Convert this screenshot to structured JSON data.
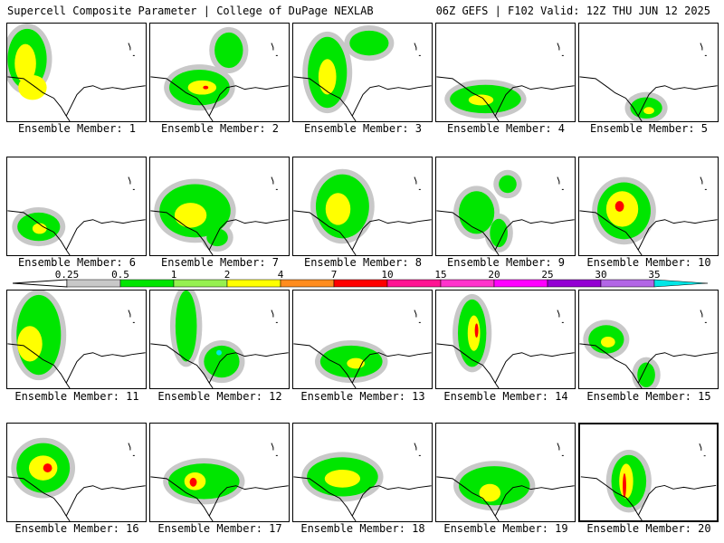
{
  "header": {
    "left": "Supercell Composite Parameter | College of DuPage NEXLAB",
    "right": "06Z GEFS | F102 Valid: 12Z THU JUN 12 2025"
  },
  "members": [
    {
      "label": "Ensemble Member: 1"
    },
    {
      "label": "Ensemble Member: 2"
    },
    {
      "label": "Ensemble Member: 3"
    },
    {
      "label": "Ensemble Member: 4"
    },
    {
      "label": "Ensemble Member: 5"
    },
    {
      "label": "Ensemble Member: 6"
    },
    {
      "label": "Ensemble Member: 7"
    },
    {
      "label": "Ensemble Member: 8"
    },
    {
      "label": "Ensemble Member: 9"
    },
    {
      "label": "Ensemble Member: 10"
    },
    {
      "label": "Ensemble Member: 11"
    },
    {
      "label": "Ensemble Member: 12"
    },
    {
      "label": "Ensemble Member: 13"
    },
    {
      "label": "Ensemble Member: 14"
    },
    {
      "label": "Ensemble Member: 15"
    },
    {
      "label": "Ensemble Member: 16"
    },
    {
      "label": "Ensemble Member: 17"
    },
    {
      "label": "Ensemble Member: 18"
    },
    {
      "label": "Ensemble Member: 19"
    },
    {
      "label": "Ensemble Member: 20"
    }
  ],
  "selected_member": 20,
  "colorbar": {
    "levels": [
      {
        "label": "0.25",
        "color": "#c8c8c8"
      },
      {
        "label": "0.5",
        "color": "#00e600"
      },
      {
        "label": "1",
        "color": "#96f050"
      },
      {
        "label": "2",
        "color": "#ffff00"
      },
      {
        "label": "4",
        "color": "#ff8c1e"
      },
      {
        "label": "7",
        "color": "#ff0000"
      },
      {
        "label": "10",
        "color": "#ff1493"
      },
      {
        "label": "15",
        "color": "#ff33cc"
      },
      {
        "label": "20",
        "color": "#ff00ff"
      },
      {
        "label": "25",
        "color": "#9400d3"
      },
      {
        "label": "30",
        "color": "#b266e6"
      },
      {
        "label": "35",
        "color": "#00e6e6"
      }
    ]
  }
}
